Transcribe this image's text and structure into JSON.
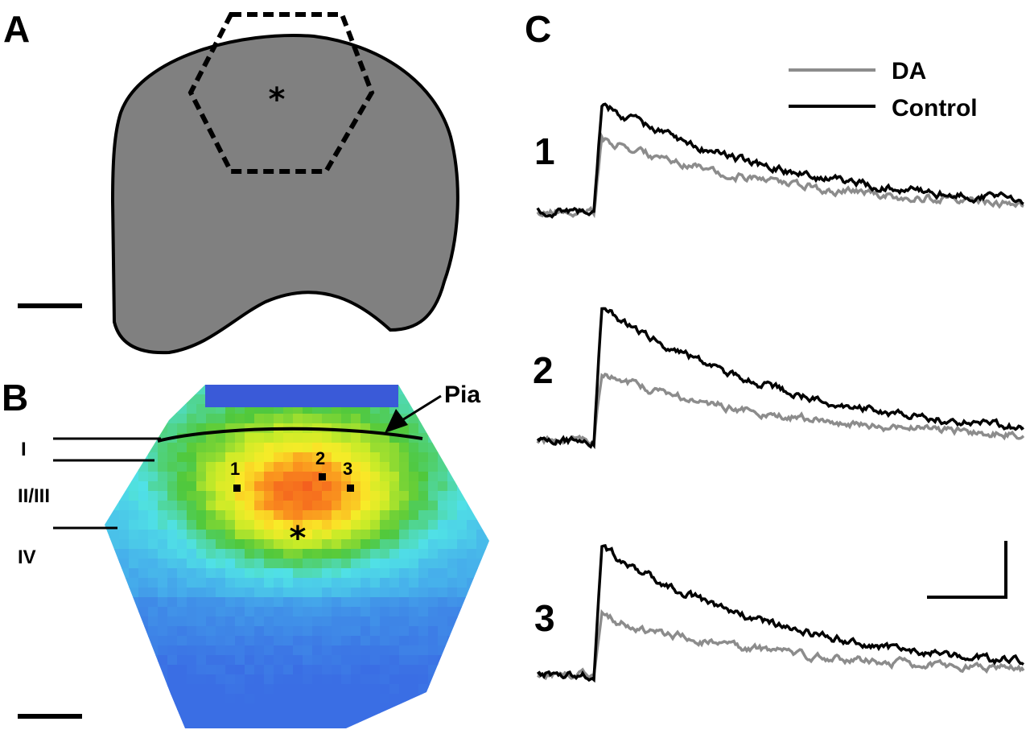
{
  "panels": {
    "a": {
      "letter": "A",
      "asterisk": "*"
    },
    "b": {
      "letter": "B",
      "pia_label": "Pia",
      "layers": [
        "I",
        "II/III",
        "IV"
      ],
      "sites": [
        "1",
        "2",
        "3"
      ],
      "asterisk": "*"
    },
    "c": {
      "letter": "C",
      "trace_labels": [
        "1",
        "2",
        "3"
      ],
      "legend": [
        {
          "label": "DA",
          "color": "#8c8c8c"
        },
        {
          "label": "Control",
          "color": "#000000"
        }
      ]
    }
  },
  "colors": {
    "slice_fill": "#808080",
    "outline": "#000000",
    "da_trace": "#8c8c8c",
    "control_trace": "#000000"
  }
}
